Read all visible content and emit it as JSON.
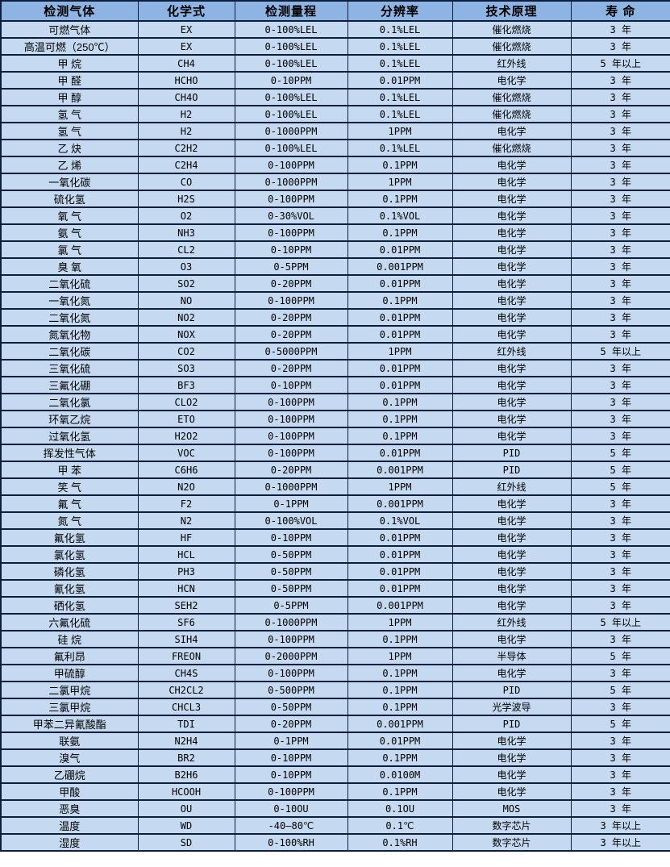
{
  "colors": {
    "header_bg": "#8DB4E2",
    "row_bg": "#C5D9F1",
    "border": "#0E1F3D",
    "text": "#000000"
  },
  "table": {
    "headers": [
      "检测气体",
      "化学式",
      "检测量程",
      "分辨率",
      "技术原理",
      "寿 命"
    ],
    "rows": [
      [
        "可燃气体",
        "EX",
        "0-100%LEL",
        "0.1%LEL",
        "催化燃烧",
        "3 年"
      ],
      [
        "高温可燃（250℃）",
        "EX",
        "0-100%LEL",
        "0.1%LEL",
        "催化燃烧",
        "3 年"
      ],
      [
        "甲 烷",
        "CH4",
        "0-100%LEL",
        "0.1%LEL",
        "红外线",
        "5 年以上"
      ],
      [
        "甲 醛",
        "HCHO",
        "0-10PPM",
        "0.01PPM",
        "电化学",
        "3 年"
      ],
      [
        "甲 醇",
        "CH4O",
        "0-100%LEL",
        "0.1%LEL",
        "催化燃烧",
        "3 年"
      ],
      [
        "氢 气",
        "H2",
        "0-100%LEL",
        "0.1%LEL",
        "催化燃烧",
        "3 年"
      ],
      [
        "氢 气",
        "H2",
        "0-1000PPM",
        "1PPM",
        "电化学",
        "3 年"
      ],
      [
        "乙 炔",
        "C2H2",
        "0-100%LEL",
        "0.1%LEL",
        "催化燃烧",
        "3 年"
      ],
      [
        "乙 烯",
        "C2H4",
        "0-100PPM",
        "0.1PPM",
        "电化学",
        "3 年"
      ],
      [
        "一氧化碳",
        "CO",
        "0-1000PPM",
        "1PPM",
        "电化学",
        "3 年"
      ],
      [
        "硫化氢",
        "H2S",
        "0-100PPM",
        "0.1PPM",
        "电化学",
        "3 年"
      ],
      [
        "氧 气",
        "O2",
        "0-30%VOL",
        "0.1%VOL",
        "电化学",
        "3 年"
      ],
      [
        "氨 气",
        "NH3",
        "0-100PPM",
        "0.1PPM",
        "电化学",
        "3 年"
      ],
      [
        "氯 气",
        "CL2",
        "0-10PPM",
        "0.01PPM",
        "电化学",
        "3 年"
      ],
      [
        "臭 氧",
        "O3",
        "0-5PPM",
        "0.001PPM",
        "电化学",
        "3 年"
      ],
      [
        "二氧化硫",
        "SO2",
        "0-20PPM",
        "0.01PPM",
        "电化学",
        "3 年"
      ],
      [
        "一氧化氮",
        "NO",
        "0-100PPM",
        "0.1PPM",
        "电化学",
        "3 年"
      ],
      [
        "二氧化氮",
        "NO2",
        "0-20PPM",
        "0.01PPM",
        "电化学",
        "3 年"
      ],
      [
        "氮氧化物",
        "NOX",
        "0-20PPM",
        "0.01PPM",
        "电化学",
        "3 年"
      ],
      [
        "二氧化碳",
        "CO2",
        "0-5000PPM",
        "1PPM",
        "红外线",
        "5 年以上"
      ],
      [
        "三氧化硫",
        "SO3",
        "0-20PPM",
        "0.01PPM",
        "电化学",
        "3 年"
      ],
      [
        "三氟化硼",
        "BF3",
        "0-10PPM",
        "0.01PPM",
        "电化学",
        "3 年"
      ],
      [
        "二氧化氯",
        "CLO2",
        "0-100PPM",
        "0.1PPM",
        "电化学",
        "3 年"
      ],
      [
        "环氧乙烷",
        "ETO",
        "0-100PPM",
        "0.1PPM",
        "电化学",
        "3 年"
      ],
      [
        "过氧化氢",
        "H2O2",
        "0-100PPM",
        "0.1PPM",
        "电化学",
        "3 年"
      ],
      [
        "挥发性气体",
        "VOC",
        "0-100PPM",
        "0.01PPM",
        "PID",
        "5 年"
      ],
      [
        "甲 苯",
        "C6H6",
        "0-20PPM",
        "0.001PPM",
        "PID",
        "5 年"
      ],
      [
        "笑 气",
        "N2O",
        "0-1000PPM",
        "1PPM",
        "红外线",
        "5 年"
      ],
      [
        "氟 气",
        "F2",
        "0-1PPM",
        "0.001PPM",
        "电化学",
        "3 年"
      ],
      [
        "氮 气",
        "N2",
        "0-100%VOL",
        "0.1%VOL",
        "电化学",
        "3 年"
      ],
      [
        "氟化氢",
        "HF",
        "0-10PPM",
        "0.01PPM",
        "电化学",
        "3 年"
      ],
      [
        "氯化氢",
        "HCL",
        "0-50PPM",
        "0.01PPM",
        "电化学",
        "3 年"
      ],
      [
        "磷化氢",
        "PH3",
        "0-50PPM",
        "0.01PPM",
        "电化学",
        "3 年"
      ],
      [
        "氰化氢",
        "HCN",
        "0-50PPM",
        "0.01PPM",
        "电化学",
        "3 年"
      ],
      [
        "硒化氢",
        "SEH2",
        "0-5PPM",
        "0.001PPM",
        "电化学",
        "3 年"
      ],
      [
        "六氟化硫",
        "SF6",
        "0-1000PPM",
        "1PPM",
        "红外线",
        "5 年以上"
      ],
      [
        "硅 烷",
        "SIH4",
        "0-100PPM",
        "0.1PPM",
        "电化学",
        "3 年"
      ],
      [
        "氟利昂",
        "FREON",
        "0-2000PPM",
        "1PPM",
        "半导体",
        "5 年"
      ],
      [
        "甲硫醇",
        "CH4S",
        "0-100PPM",
        "0.1PPM",
        "电化学",
        "3 年"
      ],
      [
        "二氯甲烷",
        "CH2CL2",
        "0-500PPM",
        "0.1PPM",
        "PID",
        "5 年"
      ],
      [
        "三氯甲烷",
        "CHCL3",
        "0-50PPM",
        "0.1PPM",
        "光学波导",
        "3 年"
      ],
      [
        "甲苯二异氰酸酯",
        "TDI",
        "0-20PPM",
        "0.001PPM",
        "PID",
        "5 年"
      ],
      [
        "联氨",
        "N2H4",
        "0-1PPM",
        "0.01PPM",
        "电化学",
        "3 年"
      ],
      [
        "溴气",
        "BR2",
        "0-10PPM",
        "0.1PPM",
        "电化学",
        "3 年"
      ],
      [
        "乙硼烷",
        "B2H6",
        "0-10PPM",
        "0.0100M",
        "电化学",
        "3 年"
      ],
      [
        "甲酸",
        "HCOOH",
        "0-100PPM",
        "0.1PPM",
        "电化学",
        "3 年"
      ],
      [
        "恶臭",
        "OU",
        "0-10OU",
        "0.1OU",
        "MOS",
        "3 年"
      ],
      [
        "温度",
        "WD",
        "-40—80℃",
        "0.1℃",
        "数字芯片",
        "3 年以上"
      ],
      [
        "湿度",
        "SD",
        "0-100%RH",
        "0.1%RH",
        "数字芯片",
        "3 年以上"
      ]
    ]
  }
}
